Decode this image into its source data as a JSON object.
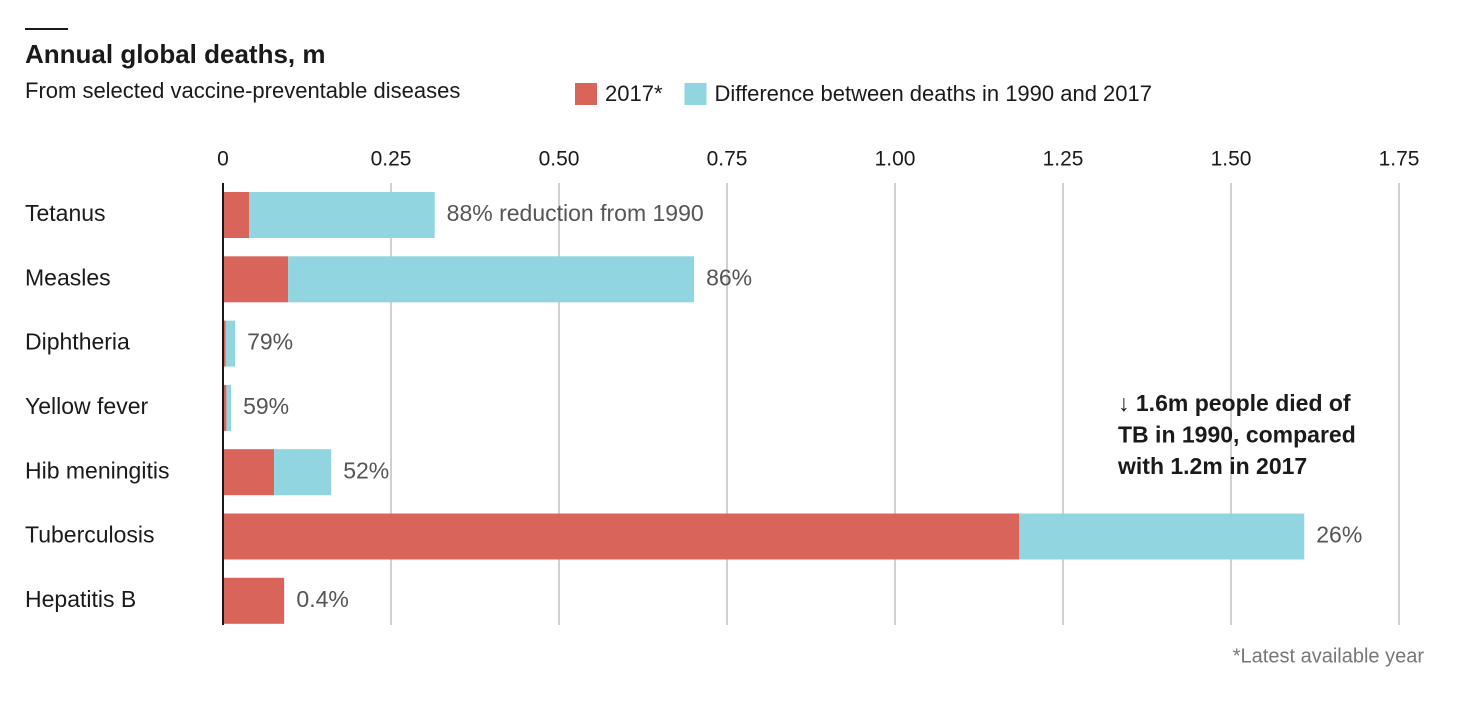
{
  "chart_data": {
    "type": "stacked-barh",
    "title": "Annual global deaths, m",
    "subtitle": "From selected vaccine-preventable diseases",
    "categories": [
      "Tetanus",
      "Measles",
      "Diphtheria",
      "Yellow fever",
      "Hib meningitis",
      "Tuberculosis",
      "Hepatitis B"
    ],
    "series": [
      {
        "name": "2017*",
        "color": "#d9645a",
        "values": [
          0.039,
          0.097,
          0.004,
          0.005,
          0.076,
          1.185,
          0.091
        ]
      },
      {
        "name": "Difference between deaths in 1990 and 2017",
        "color": "#90d5e0",
        "values": [
          0.276,
          0.604,
          0.014,
          0.007,
          0.085,
          0.424,
          0.0004
        ]
      }
    ],
    "reduction_labels": [
      "88% reduction from 1990",
      "86%",
      "79%",
      "59%",
      "52%",
      "26%",
      "0.4%"
    ],
    "xlim": [
      0,
      1.75
    ],
    "xticks": [
      0,
      0.25,
      {
        "value": 0.5,
        "label": "0.50"
      },
      0.75,
      {
        "value": 1,
        "label": "1.00"
      },
      1.25,
      {
        "value": 1.5,
        "label": "1.50"
      },
      1.75
    ],
    "grid": true,
    "annotation": [
      "↓ 1.6m people died of",
      "TB in 1990, compared",
      "with 1.2m in 2017"
    ],
    "footnote": "*Latest available year"
  }
}
